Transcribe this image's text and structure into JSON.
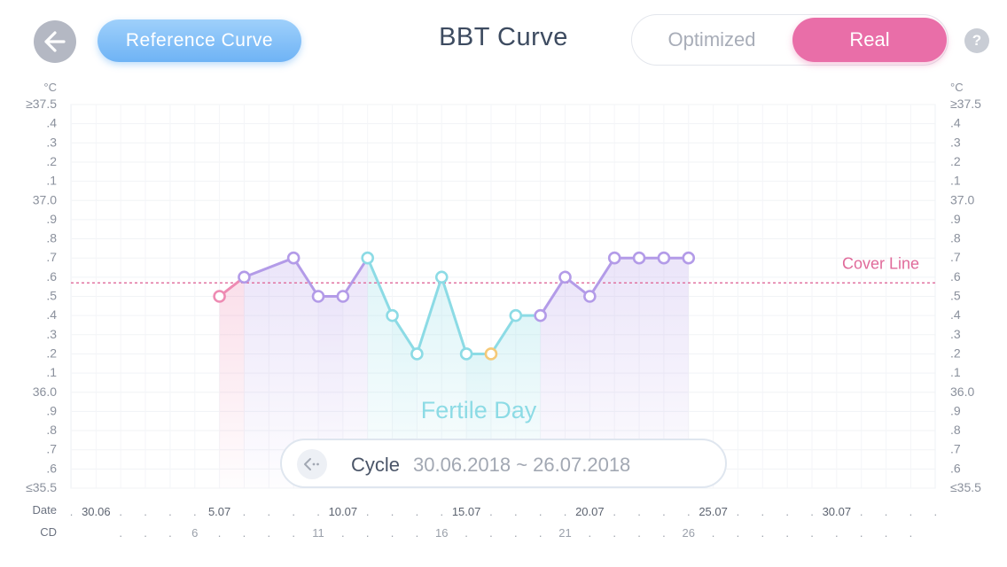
{
  "header": {
    "back_icon": "arrow-left-icon",
    "reference_button": "Reference Curve",
    "title": "BBT Curve",
    "toggle": {
      "optimized": "Optimized",
      "real": "Real",
      "selected": "Real"
    },
    "help_label": "?"
  },
  "colors": {
    "menstrual": "#ee8bb3",
    "follicular": "#b39be8",
    "fertile": "#8cdbe5",
    "ovulation": "#f5c978",
    "cover_line": "#e06a9a",
    "accent_pink": "#e96ea8",
    "accent_blue": "#6fb3f5"
  },
  "chart_data": {
    "type": "line",
    "title": "BBT Curve",
    "ylabel": "°C",
    "ylim": [
      35.5,
      37.5
    ],
    "y_tick_labels": [
      "≥37.5",
      ".4",
      ".3",
      ".2",
      ".1",
      "37.0",
      ".9",
      ".8",
      ".7",
      ".6",
      ".5",
      ".4",
      ".3",
      ".2",
      ".1",
      "36.0",
      ".9",
      ".8",
      ".7",
      ".6",
      "≤35.5"
    ],
    "x_row_label": "Date",
    "date_labels": [
      {
        "day": 2,
        "label": "30.06"
      },
      {
        "day": 7,
        "label": "5.07"
      },
      {
        "day": 12,
        "label": "10.07"
      },
      {
        "day": 17,
        "label": "15.07"
      },
      {
        "day": 22,
        "label": "20.07"
      },
      {
        "day": 27,
        "label": "25.07"
      },
      {
        "day": 32,
        "label": "30.07"
      }
    ],
    "cd_row_label": "CD",
    "cd_labels": [
      {
        "day": 6,
        "label": "6"
      },
      {
        "day": 11,
        "label": "11"
      },
      {
        "day": 16,
        "label": "16"
      },
      {
        "day": 21,
        "label": "21"
      },
      {
        "day": 26,
        "label": "26"
      }
    ],
    "cover_line": {
      "value": 36.57,
      "label": "Cover Line"
    },
    "points": [
      {
        "day": 7,
        "temp": 36.5,
        "phase": "menstrual"
      },
      {
        "day": 8,
        "temp": 36.6,
        "phase": "follicular"
      },
      {
        "day": 10,
        "temp": 36.7,
        "phase": "follicular"
      },
      {
        "day": 11,
        "temp": 36.5,
        "phase": "follicular"
      },
      {
        "day": 12,
        "temp": 36.5,
        "phase": "follicular"
      },
      {
        "day": 13,
        "temp": 36.7,
        "phase": "fertile"
      },
      {
        "day": 14,
        "temp": 36.4,
        "phase": "fertile"
      },
      {
        "day": 15,
        "temp": 36.2,
        "phase": "fertile"
      },
      {
        "day": 16,
        "temp": 36.6,
        "phase": "fertile"
      },
      {
        "day": 17,
        "temp": 36.2,
        "phase": "fertile"
      },
      {
        "day": 18,
        "temp": 36.2,
        "phase": "ovulation"
      },
      {
        "day": 19,
        "temp": 36.4,
        "phase": "fertile"
      },
      {
        "day": 20,
        "temp": 36.4,
        "phase": "follicular"
      },
      {
        "day": 21,
        "temp": 36.6,
        "phase": "follicular"
      },
      {
        "day": 22,
        "temp": 36.5,
        "phase": "follicular"
      },
      {
        "day": 23,
        "temp": 36.7,
        "phase": "follicular"
      },
      {
        "day": 24,
        "temp": 36.7,
        "phase": "follicular"
      },
      {
        "day": 25,
        "temp": 36.7,
        "phase": "follicular"
      },
      {
        "day": 26,
        "temp": 36.7,
        "phase": "follicular"
      }
    ],
    "fertile_window": {
      "start_day": 13,
      "end_day": 20,
      "label": "Fertile Day"
    },
    "grid": true
  },
  "cycle": {
    "label": "Cycle",
    "range": "30.06.2018 ~ 26.07.2018",
    "icon": "chevron-left-dots-icon"
  }
}
